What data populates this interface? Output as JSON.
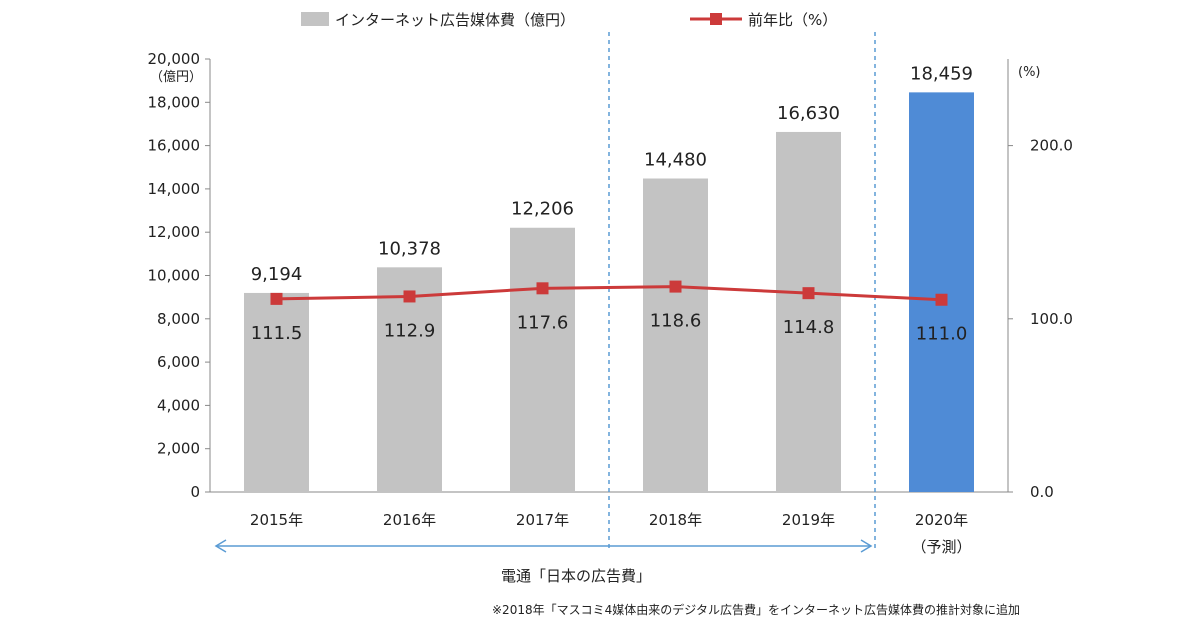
{
  "colors": {
    "bar": "#c3c3c3",
    "bar_highlight": "#4f8bd6",
    "line": "#cc3a3a",
    "axis": "#888888",
    "divider": "#5a9bd4",
    "range_arrow": "#5a9bd4"
  },
  "legend": {
    "bar_label": "インターネット広告媒体費（億円）",
    "line_label": "前年比（%）"
  },
  "chart_data": {
    "type": "bar",
    "categories": [
      "2015年",
      "2016年",
      "2017年",
      "2018年",
      "2019年",
      "2020年"
    ],
    "category_sub": [
      "",
      "",
      "",
      "",
      "",
      "（予測）"
    ],
    "series": [
      {
        "name": "インターネット広告媒体費（億円）",
        "type": "bar",
        "values": [
          9194,
          10378,
          12206,
          14480,
          16630,
          18459
        ],
        "labels": [
          "9,194",
          "10,378",
          "12,206",
          "14,480",
          "16,630",
          "18,459"
        ],
        "highlight_index": 5
      },
      {
        "name": "前年比（%）",
        "type": "line",
        "axis": "right",
        "values": [
          111.5,
          112.9,
          117.6,
          118.6,
          114.8,
          111.0
        ],
        "labels": [
          "111.5",
          "112.9",
          "117.6",
          "118.6",
          "114.8",
          "111.0"
        ]
      }
    ],
    "y_left": {
      "unit": "（億円）",
      "ylim": [
        0,
        20000
      ],
      "ticks": [
        0,
        2000,
        4000,
        6000,
        8000,
        10000,
        12000,
        14000,
        16000,
        18000,
        20000
      ],
      "tick_labels": [
        "0",
        "2,000",
        "4,000",
        "6,000",
        "8,000",
        "10,000",
        "12,000",
        "14,000",
        "16,000",
        "18,000",
        "20,000"
      ]
    },
    "y_right": {
      "unit": "(%)",
      "ylim": [
        0,
        250
      ],
      "ticks": [
        0,
        100,
        200
      ],
      "tick_labels": [
        "0.0",
        "100.0",
        "200.0"
      ]
    },
    "dividers_after_index": [
      2,
      4
    ],
    "range_label": "電通「日本の広告費」",
    "range_from": 0,
    "range_to": 4,
    "grid": false,
    "legend_position": "top"
  },
  "footnote": "※2018年「マスコミ4媒体由来のデジタル広告費」をインターネット広告媒体費の推計対象に追加"
}
